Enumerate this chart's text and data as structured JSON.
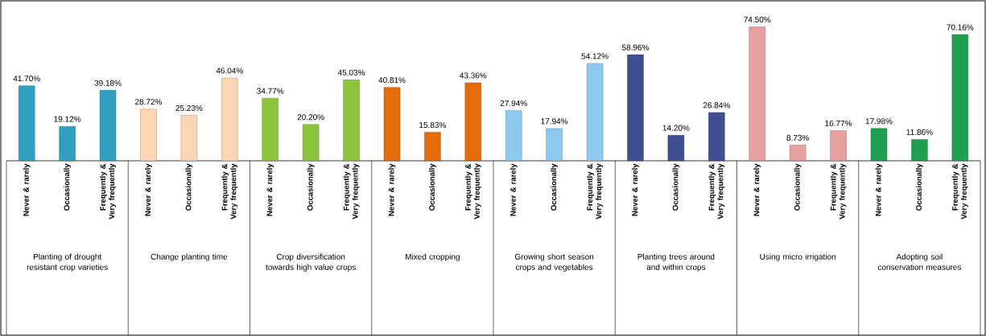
{
  "chart_data": {
    "type": "bar",
    "categories": [
      "Never & rarely",
      "Occasionally",
      "Frequently & Very frequently",
      "Never & rarely",
      "Occasionally",
      "Frequently & Very frequently",
      "Never & rarely",
      "Occasionally",
      "Frequently & Very frequently",
      "Never & rarely",
      "Occasionally",
      "Frequently & Very frequently",
      "Never & rarely",
      "Occasionally",
      "Frequently & Very frequently",
      "Never & rarely",
      "Occasionally",
      "Frequently & Very frequently",
      "Never & rarely",
      "Occasionally",
      "Frequently & Very frequently",
      "Never & rarely",
      "Occasionally",
      "Frequently & Very frequently"
    ],
    "values": [
      41.7,
      19.12,
      39.18,
      28.72,
      25.23,
      46.04,
      34.77,
      20.2,
      45.03,
      40.81,
      15.83,
      43.36,
      27.94,
      17.94,
      54.12,
      58.96,
      14.2,
      26.84,
      74.5,
      8.73,
      16.77,
      17.98,
      11.86,
      70.16
    ],
    "value_labels": [
      "41.70%",
      "19.12%",
      "39.18%",
      "28.72%",
      "25.23%",
      "46.04%",
      "34.77%",
      "20.20%",
      "45.03%",
      "40.81%",
      "15.83%",
      "43.36%",
      "27.94%",
      "17.94%",
      "54.12%",
      "58.96%",
      "14.20%",
      "26.84%",
      "74.50%",
      "8.73%",
      "16.77%",
      "17.98%",
      "11.86%",
      "70.16%"
    ],
    "colors": [
      "#31a0c0",
      "#31a0c0",
      "#31a0c0",
      "#fcd5b4",
      "#fcd5b4",
      "#fcd5b4",
      "#8dc43f",
      "#8dc43f",
      "#8dc43f",
      "#e46c0a",
      "#e46c0a",
      "#e46c0a",
      "#8ec9f0",
      "#8ec9f0",
      "#8ec9f0",
      "#3f4f8f",
      "#3f4f8f",
      "#3f4f8f",
      "#e6a0a0",
      "#e6a0a0",
      "#e6a0a0",
      "#1fa050",
      "#1fa050",
      "#1fa050"
    ],
    "annotations": [
      "Planting of drought resistant crop varieties",
      "Change planting time",
      "Crop diversification towards high value crops",
      "Mixed cropping",
      "Growing short season crops and vegetables",
      "Planting trees around and within crops",
      "Using micro irrigation",
      "Adopting soil conservation measures"
    ]
  }
}
